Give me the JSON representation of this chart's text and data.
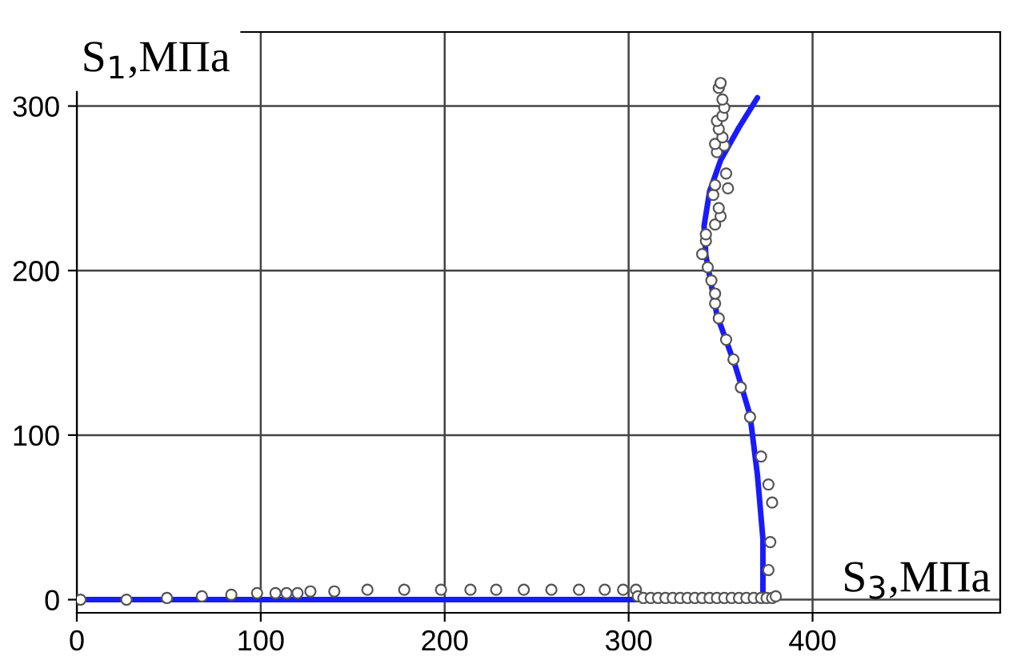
{
  "chart_data": {
    "type": "scatter",
    "xlabel": "S$_{3}$,МПа",
    "ylabel": "S$_{1}$,МПа",
    "xlim": [
      0,
      502
    ],
    "ylim": [
      -8,
      345
    ],
    "xticks": [
      0,
      100,
      200,
      300,
      400
    ],
    "yticks": [
      0,
      100,
      200,
      300
    ],
    "grid": true,
    "legend": false,
    "series": [
      {
        "color": "#ffffff",
        "marker": "circle",
        "x": [
          2,
          27,
          49,
          68,
          84,
          98,
          108,
          114,
          120,
          127,
          140,
          158,
          178,
          198,
          214,
          228,
          243,
          258,
          273,
          287,
          297,
          304,
          305,
          308,
          312,
          316,
          320,
          324,
          328,
          332,
          336,
          340,
          344,
          348,
          352,
          356,
          360,
          364,
          368,
          372,
          375,
          378,
          380,
          376,
          377,
          378,
          376,
          372,
          366,
          361,
          357,
          353,
          349,
          347,
          347,
          345,
          343,
          340,
          342,
          342,
          347,
          350,
          349,
          346,
          354,
          347,
          353,
          348,
          352,
          347,
          351,
          349,
          348,
          351,
          352,
          351,
          349,
          350
        ],
        "values": [
          0,
          0,
          1,
          2,
          3,
          4,
          4,
          4,
          4,
          5,
          5,
          6,
          6,
          6,
          6,
          6,
          6,
          6,
          6,
          6,
          6,
          6,
          2,
          1,
          1,
          1,
          1,
          1,
          1,
          1,
          1,
          1,
          1,
          1,
          1,
          1,
          1,
          1,
          1,
          1,
          1,
          1,
          2,
          18,
          35,
          59,
          70,
          87,
          111,
          129,
          146,
          158,
          171,
          180,
          186,
          194,
          202,
          210,
          218,
          222,
          228,
          233,
          238,
          246,
          250,
          252,
          259,
          272,
          276,
          277,
          281,
          286,
          291,
          294,
          299,
          304,
          311,
          314
        ]
      },
      {
        "type": "line",
        "color": "#1a1aff",
        "marker": "none",
        "x": [
          0,
          100,
          200,
          300,
          373,
          373,
          370,
          366,
          361,
          358,
          348,
          342,
          341,
          344,
          350,
          360,
          370
        ],
        "values": [
          0,
          0,
          0,
          0,
          0,
          37,
          76,
          112,
          131,
          142,
          173,
          209,
          227,
          248,
          267,
          287,
          305
        ]
      }
    ]
  }
}
